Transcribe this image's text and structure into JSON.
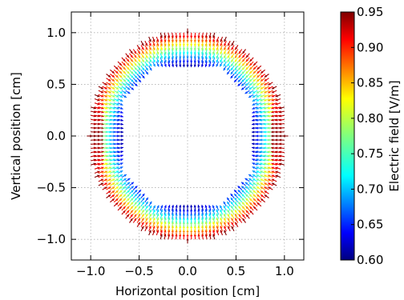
{
  "chart_data": {
    "type": "quiver",
    "xlabel": "Horizontal position [cm]",
    "ylabel": "Vertical position [cm]",
    "xlim": [
      -1.2,
      1.2
    ],
    "ylim": [
      -1.2,
      1.2
    ],
    "xticks": [
      -1.0,
      -0.5,
      0.0,
      0.5,
      1.0
    ],
    "yticks": [
      -1.0,
      -0.5,
      0.0,
      0.5,
      1.0
    ],
    "xtick_labels": [
      "−1.0",
      "−0.5",
      "0.0",
      "0.5",
      "1.0"
    ],
    "ytick_labels": [
      "−1.0",
      "−0.5",
      "0.0",
      "0.5",
      "1.0"
    ],
    "grid": true,
    "field_region": {
      "inner_boundary": "octagon",
      "inner_radius": 0.72,
      "outer_radius": 1.04,
      "grid_step": 0.04,
      "field_direction": "radial-inward"
    },
    "colorbar": {
      "label": "Electric field [V/m]",
      "min": 0.6,
      "max": 0.95,
      "ticks": [
        0.6,
        0.65,
        0.7,
        0.75,
        0.8,
        0.85,
        0.9,
        0.95
      ],
      "tick_labels": [
        "0.60",
        "0.65",
        "0.70",
        "0.75",
        "0.80",
        "0.85",
        "0.90",
        "0.95"
      ],
      "colormap": "jet"
    }
  }
}
